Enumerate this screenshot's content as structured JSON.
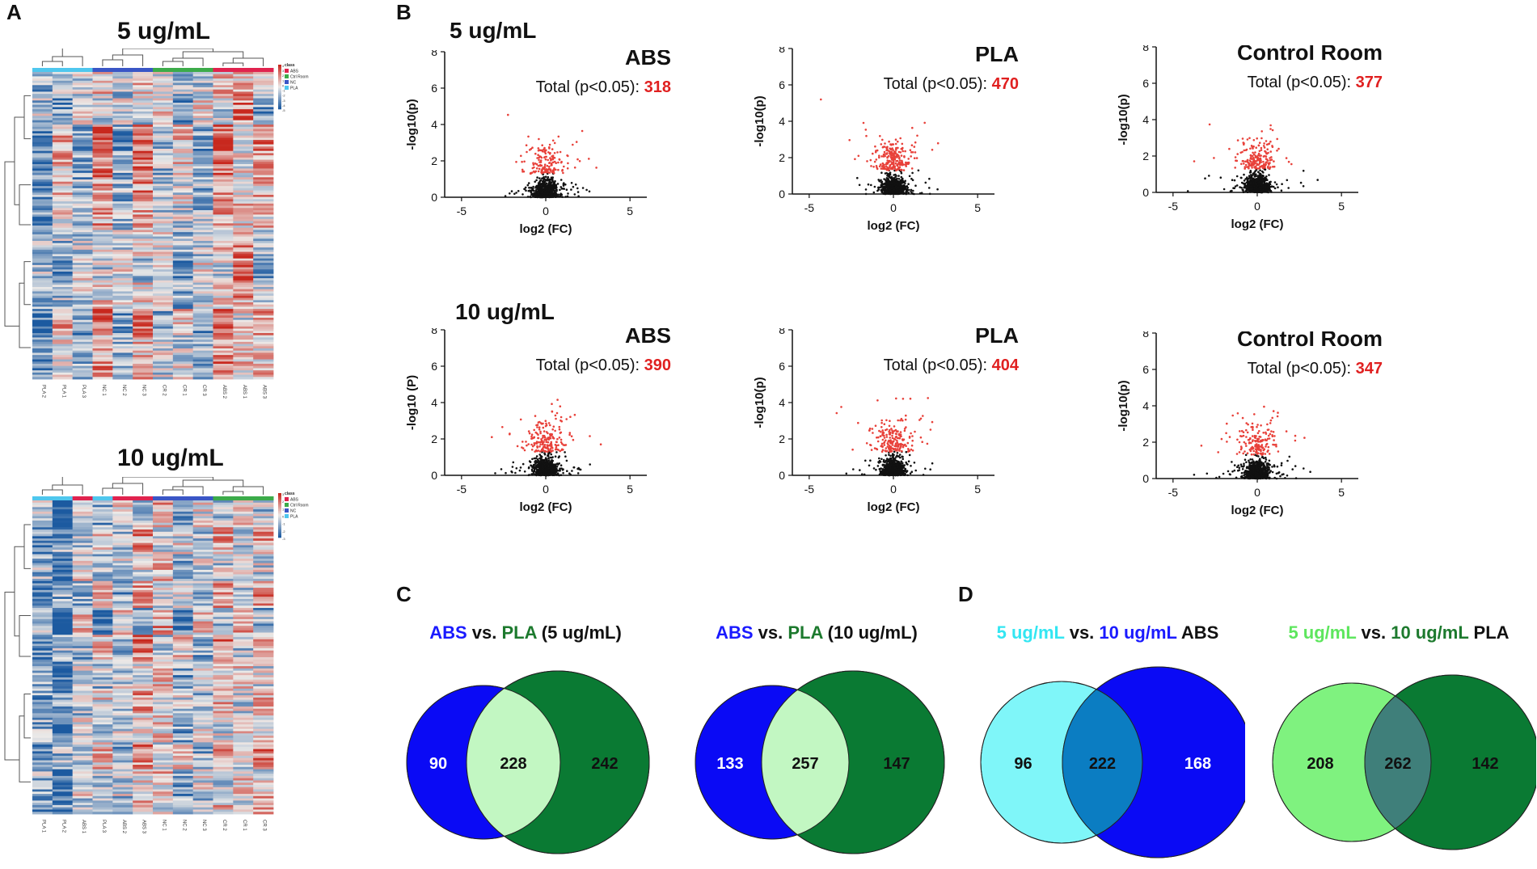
{
  "panels": {
    "a": "A",
    "b": "B",
    "c": "C",
    "d": "D"
  },
  "heatmaps": {
    "top": {
      "title": "5 ug/mL",
      "legend_title": "class",
      "legend_items": [
        {
          "label": "ABS",
          "color": "#e0234e"
        },
        {
          "label": "Ctrl Room",
          "color": "#3cab4a"
        },
        {
          "label": "NC",
          "color": "#3a56c6"
        },
        {
          "label": "PLA",
          "color": "#4fc7ee"
        }
      ],
      "scale_ticks": [
        "4",
        "3",
        "2",
        "1",
        "0",
        "-1",
        "-2",
        "-3",
        "-4",
        "-5"
      ],
      "columns": [
        "PLA 2",
        "PLA 1",
        "PLA 3",
        "NC 1",
        "NC 2",
        "NC 3",
        "CR 2",
        "CR 1",
        "CR 3",
        "ABS 2",
        "ABS 1",
        "ABS 3"
      ],
      "column_classes": [
        "PLA",
        "PLA",
        "PLA",
        "NC",
        "NC",
        "NC",
        "Ctrl Room",
        "Ctrl Room",
        "Ctrl Room",
        "ABS",
        "ABS",
        "ABS"
      ]
    },
    "bottom": {
      "title": "10 ug/mL",
      "legend_title": "class",
      "legend_items": [
        {
          "label": "ABS",
          "color": "#e0234e"
        },
        {
          "label": "Ctrl Room",
          "color": "#3cab4a"
        },
        {
          "label": "NC",
          "color": "#3a56c6"
        },
        {
          "label": "PLA",
          "color": "#4fc7ee"
        }
      ],
      "scale_ticks": [
        "3",
        "2",
        "1",
        "0",
        "-1",
        "-2",
        "-3"
      ],
      "columns": [
        "PLA 1",
        "PLA 2",
        "ABS 1",
        "PLA 3",
        "ABS 2",
        "ABS 3",
        "NC 1",
        "NC 2",
        "NC 3",
        "CR 2",
        "CR 1",
        "CR 3"
      ],
      "column_classes": [
        "PLA",
        "PLA",
        "ABS",
        "PLA",
        "ABS",
        "ABS",
        "NC",
        "NC",
        "NC",
        "Ctrl Room",
        "Ctrl Room",
        "Ctrl Room"
      ]
    }
  },
  "volcano_section": {
    "row1_title": "5 ug/mL",
    "row2_title": "10 ug/mL"
  },
  "chart_data": [
    {
      "type": "scatter",
      "id": "v5-abs",
      "title": "ABS",
      "total_label": "Total  (p<0.05):",
      "total": "318",
      "xlabel": "log2 (FC)",
      "ylabel": "-log10(p)",
      "xlim": [
        -6,
        6
      ],
      "ylim": [
        0,
        8
      ],
      "xticks": [
        "-5",
        "0",
        "5"
      ],
      "yticks": [
        "0",
        "2",
        "4",
        "6",
        "8"
      ],
      "significant_count": 318,
      "seed": 11
    },
    {
      "type": "scatter",
      "id": "v5-pla",
      "title": "PLA",
      "total_label": "Total  (p<0.05):",
      "total": "470",
      "xlabel": "log2 (FC)",
      "ylabel": "-log10(p)",
      "xlim": [
        -6,
        6
      ],
      "ylim": [
        0,
        8
      ],
      "xticks": [
        "-5",
        "0",
        "5"
      ],
      "yticks": [
        "0",
        "2",
        "4",
        "6",
        "8"
      ],
      "significant_count": 470,
      "seed": 23
    },
    {
      "type": "scatter",
      "id": "v5-cr",
      "title": "Control Room",
      "total_label": "Total  (p<0.05):",
      "total": "377",
      "xlabel": "log2 (FC)",
      "ylabel": "-log10(p)",
      "xlim": [
        -6,
        6
      ],
      "ylim": [
        0,
        8
      ],
      "xticks": [
        "-5",
        "0",
        "5"
      ],
      "yticks": [
        "0",
        "2",
        "4",
        "6",
        "8"
      ],
      "significant_count": 377,
      "seed": 37
    },
    {
      "type": "scatter",
      "id": "v10-abs",
      "title": "ABS",
      "total_label": "Total  (p<0.05):",
      "total": "390",
      "xlabel": "log2 (FC)",
      "ylabel": "-log10 (P)",
      "xlim": [
        -6,
        6
      ],
      "ylim": [
        0,
        8
      ],
      "xticks": [
        "-5",
        "0",
        "5"
      ],
      "yticks": [
        "0",
        "2",
        "4",
        "6",
        "8"
      ],
      "significant_count": 390,
      "seed": 41
    },
    {
      "type": "scatter",
      "id": "v10-pla",
      "title": "PLA",
      "total_label": "Total  (p<0.05):",
      "total": "404",
      "xlabel": "log2 (FC)",
      "ylabel": "-log10(p)",
      "xlim": [
        -6,
        6
      ],
      "ylim": [
        0,
        8
      ],
      "xticks": [
        "-5",
        "0",
        "5"
      ],
      "yticks": [
        "0",
        "2",
        "4",
        "6",
        "8"
      ],
      "significant_count": 404,
      "seed": 53
    },
    {
      "type": "scatter",
      "id": "v10-cr",
      "title": "Control Room",
      "total_label": "Total  (p<0.05):",
      "total": "347",
      "xlabel": "log2 (FC)",
      "ylabel": "-log10(p)",
      "xlim": [
        -6,
        6
      ],
      "ylim": [
        0,
        8
      ],
      "xticks": [
        "-5",
        "0",
        "5"
      ],
      "yticks": [
        "0",
        "2",
        "4",
        "6",
        "8"
      ],
      "significant_count": 347,
      "seed": 67
    }
  ],
  "venns": [
    {
      "id": "venn-abs-pla-5",
      "title_parts": [
        {
          "t": "ABS",
          "c": "#1a1aff"
        },
        {
          "t": " vs. ",
          "c": "#111111"
        },
        {
          "t": "PLA",
          "c": "#1d7a2e"
        },
        {
          "t": " (5 ug/mL)",
          "c": "#111111"
        }
      ],
      "left": 90,
      "center": 228,
      "right": 242,
      "left_color": "#0a0af5",
      "right_color": "#0a7a33",
      "overlap_color": "#c2f7c2",
      "left_text": "#ffffff",
      "center_text": "#111111",
      "right_text": "#111111"
    },
    {
      "id": "venn-abs-pla-10",
      "title_parts": [
        {
          "t": "ABS",
          "c": "#1a1aff"
        },
        {
          "t": " vs. ",
          "c": "#111111"
        },
        {
          "t": "PLA",
          "c": "#1d7a2e"
        },
        {
          "t": " (10 ug/mL)",
          "c": "#111111"
        }
      ],
      "left": 133,
      "center": 257,
      "right": 147,
      "left_color": "#0a0af5",
      "right_color": "#0a7a33",
      "overlap_color": "#c2f7c2",
      "left_text": "#ffffff",
      "center_text": "#111111",
      "right_text": "#111111"
    },
    {
      "id": "venn-abs-5-10",
      "title_parts": [
        {
          "t": "5 ug/mL",
          "c": "#33e6f2"
        },
        {
          "t": " vs. ",
          "c": "#111111"
        },
        {
          "t": "10 ug/mL",
          "c": "#1a1aff"
        },
        {
          "t": " ABS",
          "c": "#111111"
        }
      ],
      "left": 96,
      "center": 222,
      "right": 168,
      "left_color": "#7ff6f9",
      "right_color": "#0a0af5",
      "overlap_color": "#0b7dc2",
      "left_text": "#111111",
      "center_text": "#111111",
      "right_text": "#ffffff"
    },
    {
      "id": "venn-pla-5-10",
      "title_parts": [
        {
          "t": "5 ug/mL",
          "c": "#5ee65e"
        },
        {
          "t": " vs. ",
          "c": "#111111"
        },
        {
          "t": "10 ug/mL",
          "c": "#1d7a2e"
        },
        {
          "t": " PLA",
          "c": "#111111"
        }
      ],
      "left": 208,
      "center": 262,
      "right": 142,
      "left_color": "#7ff27f",
      "right_color": "#0a7a33",
      "overlap_color": "#3f7f7a",
      "left_text": "#111111",
      "center_text": "#111111",
      "right_text": "#111111"
    }
  ]
}
